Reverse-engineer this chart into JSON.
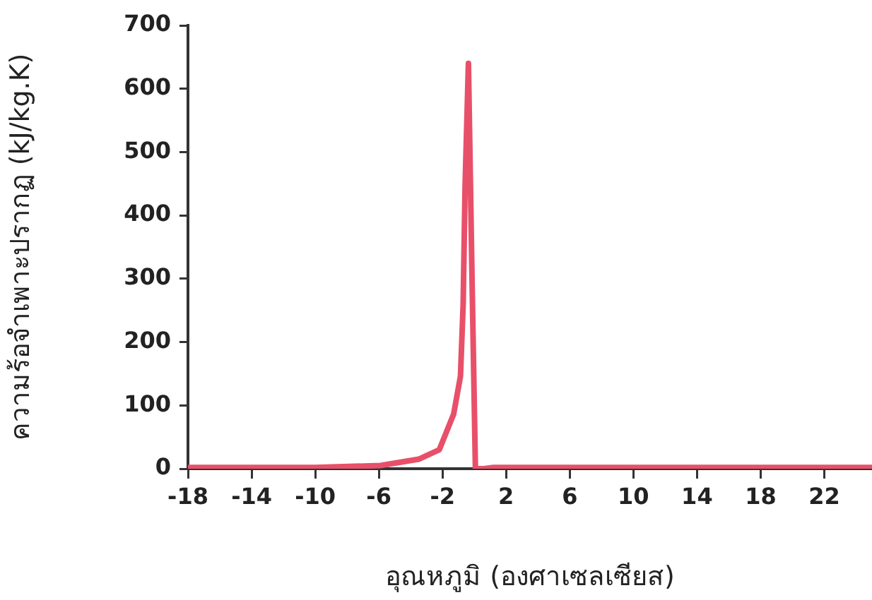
{
  "chart_data": {
    "type": "line",
    "xlabel": "อุณหภูมิ (องศาเซลเซียส)",
    "ylabel": "ความร้อจำเพาะปรากฏ (kJ/kg.K)",
    "xlim": [
      -18,
      25
    ],
    "xticks": [
      -18,
      -14,
      -10,
      -6,
      -2,
      2,
      6,
      10,
      14,
      18,
      22
    ],
    "ylim": [
      0,
      700
    ],
    "yticks": [
      0,
      100,
      200,
      300,
      400,
      500,
      600,
      700
    ],
    "grid": false,
    "legend": false,
    "marker": "none",
    "line_style": "solid",
    "series": [
      {
        "color": "#e8506a",
        "x": [
          -18,
          -10,
          -5.9,
          -3.5,
          -2.2,
          -1.3,
          -0.87,
          -0.7,
          -0.58,
          -0.37,
          -0.14,
          0.07,
          0.6,
          1.2,
          25
        ],
        "values": [
          2,
          2,
          5,
          15,
          30,
          86,
          146,
          260,
          446,
          640,
          296,
          0,
          0,
          2,
          2
        ]
      }
    ]
  }
}
